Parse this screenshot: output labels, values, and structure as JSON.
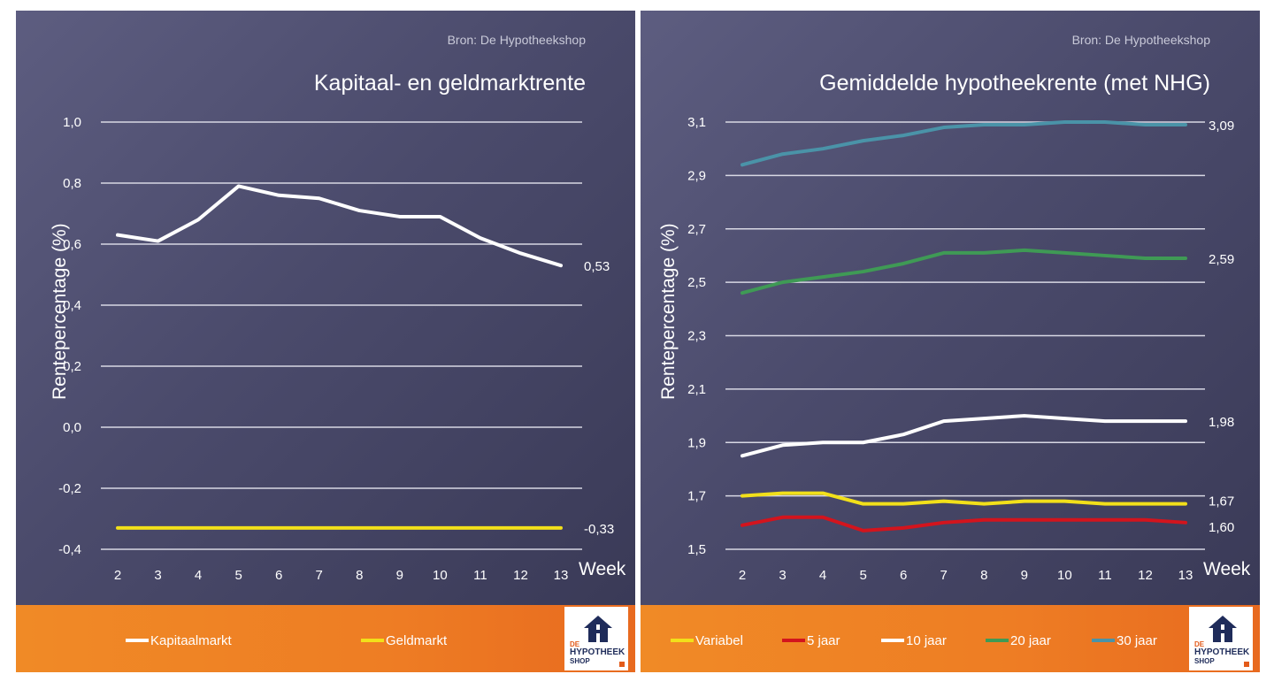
{
  "charts": [
    {
      "source": "Bron: De Hypotheekshop",
      "title": "Kapitaal- en geldmarktrente",
      "ylabel": "Rentepercentage (%)",
      "xlabel": "Week",
      "yticks": [
        "1,0",
        "0,8",
        "0,6",
        "0,4",
        "0,2",
        "0,0",
        "-0,2",
        "-0,4"
      ],
      "xticks": [
        "2",
        "3",
        "4",
        "5",
        "6",
        "7",
        "8",
        "9",
        "10",
        "11",
        "12",
        "13"
      ],
      "end_labels": [
        "0,53",
        "-0,33"
      ],
      "legend": [
        "Kapitaalmarkt",
        "Geldmarkt"
      ],
      "logo": {
        "line1": "DE",
        "line2": "HYPOTHEEK",
        "line3": "SHOP"
      }
    },
    {
      "source": "Bron: De Hypotheekshop",
      "title": "Gemiddelde hypotheekrente (met NHG)",
      "ylabel": "Rentepercentage (%)",
      "xlabel": "Week",
      "yticks": [
        "3,1",
        "2,9",
        "2,7",
        "2,5",
        "2,3",
        "2,1",
        "1,9",
        "1,7",
        "1,5"
      ],
      "xticks": [
        "2",
        "3",
        "4",
        "5",
        "6",
        "7",
        "8",
        "9",
        "10",
        "11",
        "12",
        "13"
      ],
      "end_labels": [
        "3,09",
        "2,59",
        "1,98",
        "1,67",
        "1,60"
      ],
      "legend": [
        "Variabel",
        "5 jaar",
        "10 jaar",
        "20 jaar",
        "30 jaar"
      ],
      "logo": {
        "line1": "DE",
        "line2": "HYPOTHEEK",
        "line3": "SHOP"
      }
    }
  ],
  "colors": {
    "white": "#ffffff",
    "yellow": "#f2e01a",
    "red": "#d3141d",
    "green": "#3f9a55",
    "teal": "#4a93a8",
    "grid": "#d8d8e4"
  },
  "chart_data": [
    {
      "type": "line",
      "title": "Kapitaal- en geldmarktrente",
      "xlabel": "Week",
      "ylabel": "Rentepercentage (%)",
      "x": [
        2,
        3,
        4,
        5,
        6,
        7,
        8,
        9,
        10,
        11,
        12,
        13
      ],
      "ylim": [
        -0.4,
        1.0
      ],
      "grid": true,
      "legend_position": "bottom",
      "series": [
        {
          "name": "Kapitaalmarkt",
          "color": "#ffffff",
          "values": [
            0.63,
            0.61,
            0.68,
            0.79,
            0.76,
            0.75,
            0.71,
            0.69,
            0.69,
            0.62,
            0.57,
            0.53
          ]
        },
        {
          "name": "Geldmarkt",
          "color": "#f2e01a",
          "values": [
            -0.33,
            -0.33,
            -0.33,
            -0.33,
            -0.33,
            -0.33,
            -0.33,
            -0.33,
            -0.33,
            -0.33,
            -0.33,
            -0.33
          ]
        }
      ]
    },
    {
      "type": "line",
      "title": "Gemiddelde hypotheekrente (met NHG)",
      "xlabel": "Week",
      "ylabel": "Rentepercentage (%)",
      "x": [
        2,
        3,
        4,
        5,
        6,
        7,
        8,
        9,
        10,
        11,
        12,
        13
      ],
      "ylim": [
        1.5,
        3.1
      ],
      "grid": true,
      "legend_position": "bottom",
      "series": [
        {
          "name": "Variabel",
          "color": "#f2e01a",
          "values": [
            1.7,
            1.71,
            1.71,
            1.67,
            1.67,
            1.68,
            1.67,
            1.68,
            1.68,
            1.67,
            1.67,
            1.67
          ]
        },
        {
          "name": "5 jaar",
          "color": "#d3141d",
          "values": [
            1.59,
            1.62,
            1.62,
            1.57,
            1.58,
            1.6,
            1.61,
            1.61,
            1.61,
            1.61,
            1.61,
            1.6
          ]
        },
        {
          "name": "10 jaar",
          "color": "#ffffff",
          "values": [
            1.85,
            1.89,
            1.9,
            1.9,
            1.93,
            1.98,
            1.99,
            2.0,
            1.99,
            1.98,
            1.98,
            1.98
          ]
        },
        {
          "name": "20 jaar",
          "color": "#3f9a55",
          "values": [
            2.46,
            2.5,
            2.52,
            2.54,
            2.57,
            2.61,
            2.61,
            2.62,
            2.61,
            2.6,
            2.59,
            2.59
          ]
        },
        {
          "name": "30 jaar",
          "color": "#4a93a8",
          "values": [
            2.94,
            2.98,
            3.0,
            3.03,
            3.05,
            3.08,
            3.09,
            3.09,
            3.1,
            3.1,
            3.09,
            3.09
          ]
        }
      ]
    }
  ]
}
